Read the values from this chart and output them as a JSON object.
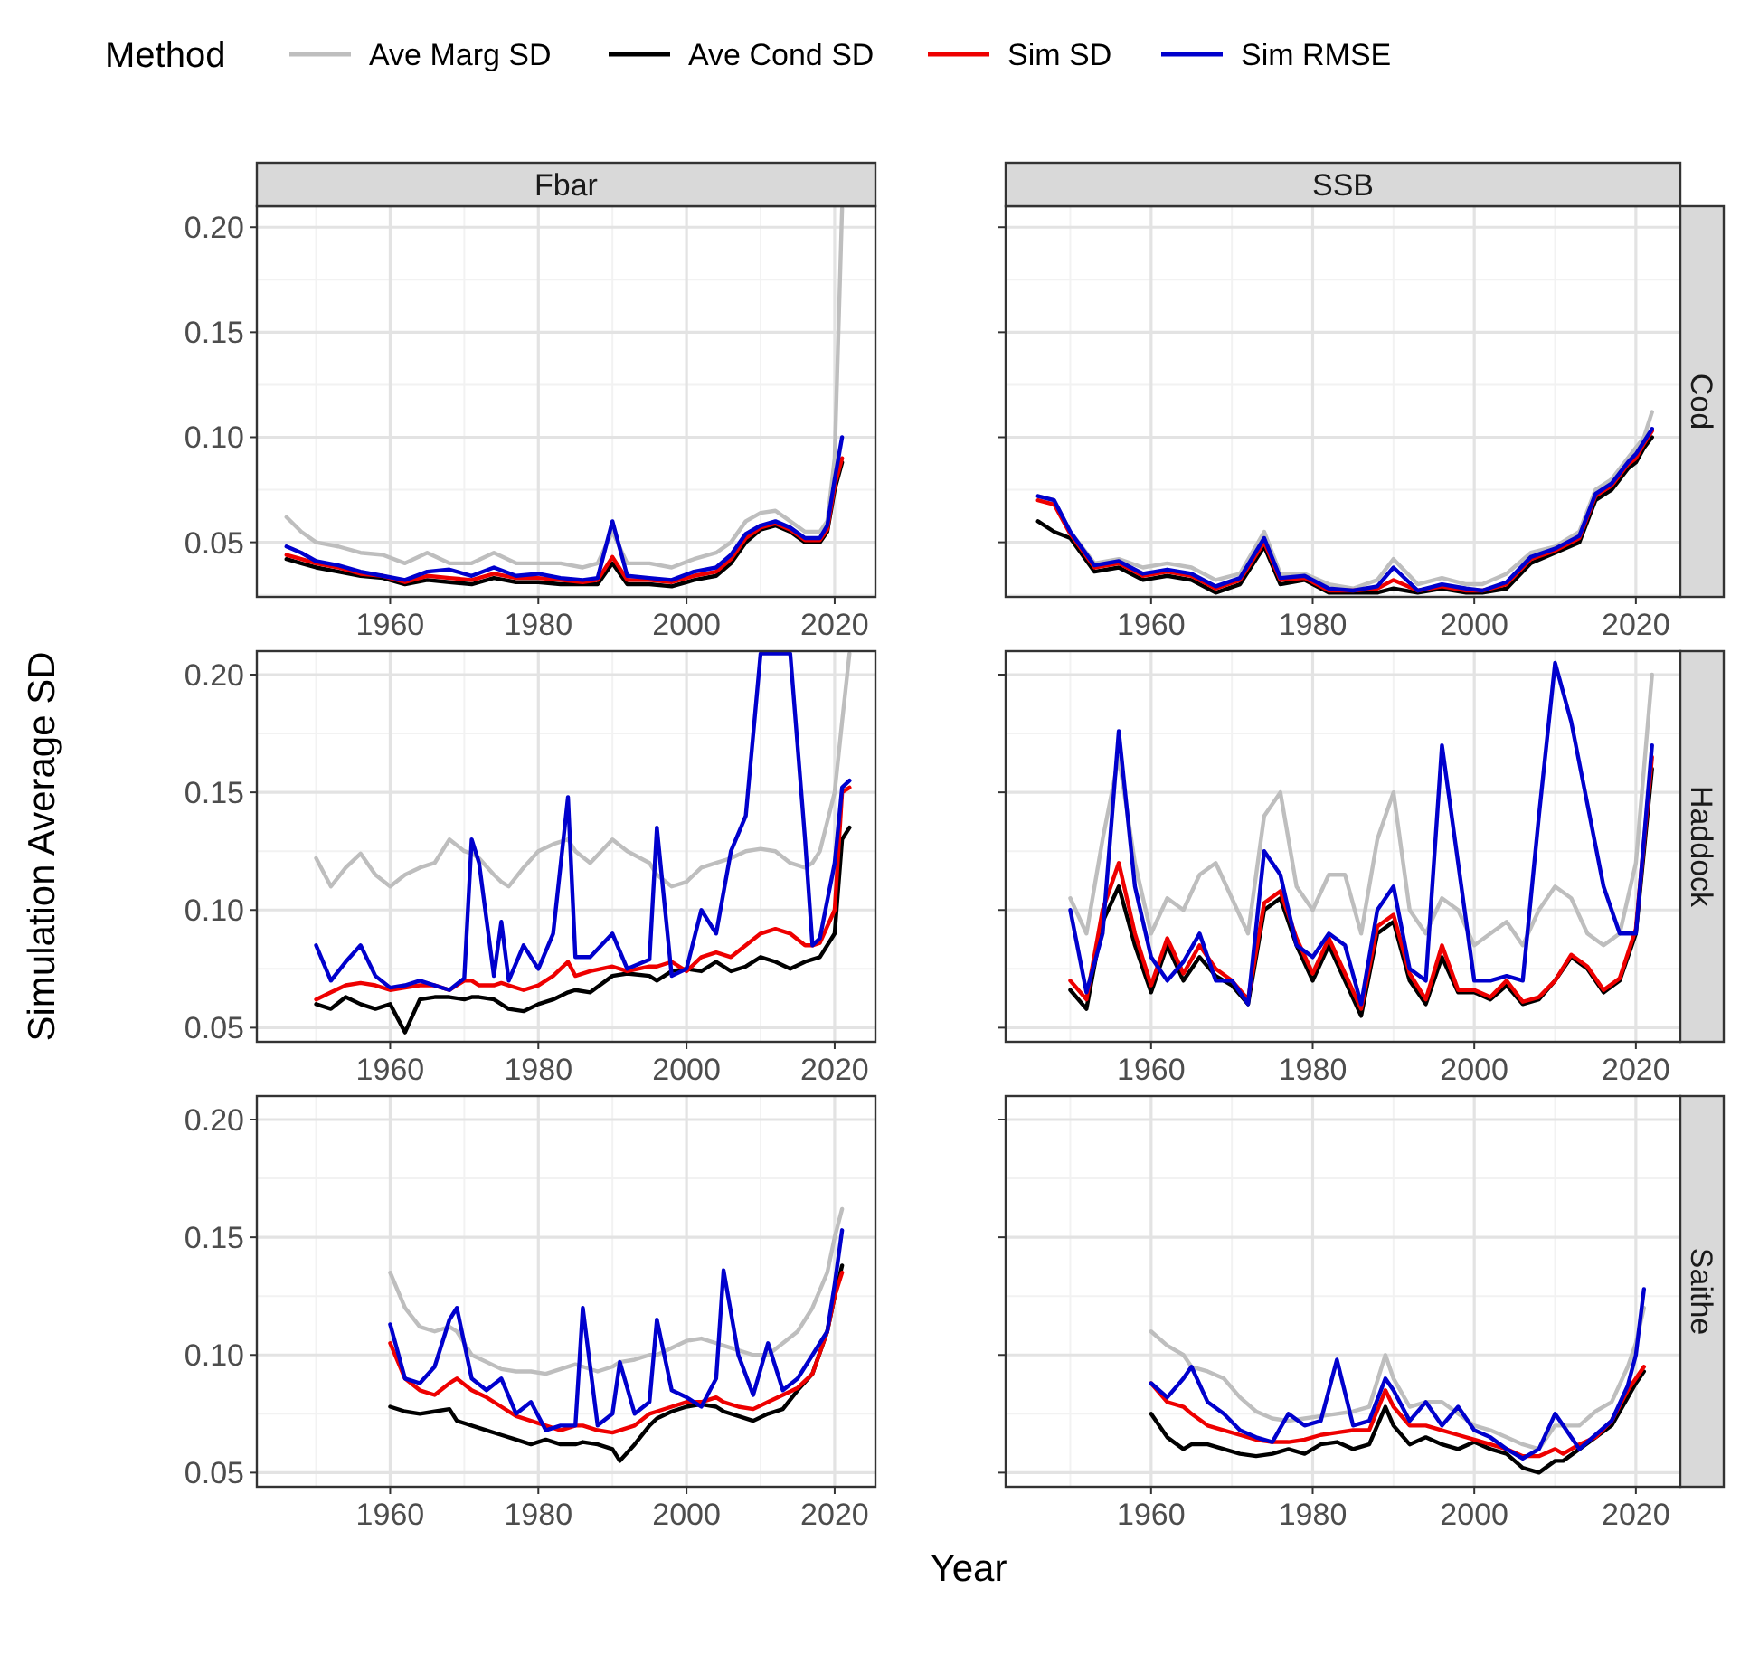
{
  "chart_data": [
    {
      "type": "line",
      "title": "Fbar",
      "legend": "top",
      "legend_title": "Method",
      "grid": true,
      "xlim": [
        1942,
        2025.5
      ],
      "xticks": [
        1960,
        1980,
        2000,
        2020
      ],
      "ylim": [
        0.024,
        0.21
      ],
      "yticks": [
        {
          "value": 0.05,
          "label": "0.05"
        },
        {
          "value": 0.1,
          "label": "0.10"
        },
        {
          "value": 0.15,
          "label": "0.15"
        },
        {
          "value": 0.2,
          "label": "0.20"
        }
      ],
      "x": [
        1946,
        1948,
        1950,
        1953,
        1956,
        1959,
        1962,
        1965,
        1968,
        1971,
        1974,
        1977,
        1980,
        1983,
        1986,
        1988,
        1990,
        1992,
        1995,
        1998,
        2001,
        2004,
        2006,
        2008,
        2010,
        2012,
        2014,
        2016,
        2018,
        2019,
        2020,
        2021
      ],
      "series": [
        {
          "name": "Ave Marg SD",
          "color": "#bebebe",
          "values": [
            0.062,
            0.055,
            0.05,
            0.048,
            0.045,
            0.044,
            0.04,
            0.045,
            0.04,
            0.04,
            0.045,
            0.04,
            0.04,
            0.04,
            0.038,
            0.04,
            0.055,
            0.04,
            0.04,
            0.038,
            0.042,
            0.045,
            0.05,
            0.06,
            0.064,
            0.065,
            0.06,
            0.055,
            0.055,
            0.06,
            0.09,
            0.209
          ]
        },
        {
          "name": "Ave Cond SD",
          "color": "#000000",
          "values": [
            0.042,
            0.04,
            0.038,
            0.036,
            0.034,
            0.033,
            0.03,
            0.032,
            0.031,
            0.03,
            0.033,
            0.031,
            0.031,
            0.03,
            0.03,
            0.03,
            0.04,
            0.03,
            0.03,
            0.029,
            0.032,
            0.034,
            0.04,
            0.05,
            0.056,
            0.058,
            0.055,
            0.05,
            0.05,
            0.055,
            0.075,
            0.088
          ]
        },
        {
          "name": "Sim SD",
          "color": "#ee0000",
          "values": [
            0.044,
            0.042,
            0.04,
            0.038,
            0.035,
            0.034,
            0.031,
            0.034,
            0.033,
            0.032,
            0.035,
            0.033,
            0.033,
            0.032,
            0.031,
            0.032,
            0.043,
            0.032,
            0.032,
            0.031,
            0.034,
            0.036,
            0.042,
            0.052,
            0.057,
            0.059,
            0.056,
            0.051,
            0.051,
            0.056,
            0.077,
            0.09
          ]
        },
        {
          "name": "Sim RMSE",
          "color": "#0000cd",
          "values": [
            0.048,
            0.045,
            0.041,
            0.039,
            0.036,
            0.034,
            0.032,
            0.036,
            0.037,
            0.034,
            0.038,
            0.034,
            0.035,
            0.033,
            0.032,
            0.033,
            0.06,
            0.034,
            0.033,
            0.032,
            0.036,
            0.038,
            0.044,
            0.054,
            0.058,
            0.06,
            0.057,
            0.052,
            0.052,
            0.058,
            0.08,
            0.1
          ]
        }
      ]
    },
    {
      "type": "line",
      "title": "SSB",
      "y2label": "Cod",
      "tick_labels": "x",
      "grid": true,
      "xlim": [
        1942,
        2025.5
      ],
      "xticks": [
        1960,
        1980,
        2000,
        2020
      ],
      "ylim": [
        0.024,
        0.21
      ],
      "yticks": [
        {
          "value": 0.05,
          "label": null
        },
        {
          "value": 0.1,
          "label": null
        },
        {
          "value": 0.15,
          "label": null
        },
        {
          "value": 0.2,
          "label": null
        }
      ],
      "x": [
        1946,
        1948,
        1950,
        1953,
        1956,
        1959,
        1962,
        1965,
        1968,
        1971,
        1974,
        1976,
        1979,
        1982,
        1985,
        1988,
        1990,
        1993,
        1996,
        1999,
        2001,
        2004,
        2007,
        2010,
        2013,
        2015,
        2017,
        2019,
        2020,
        2021,
        2022
      ],
      "series": [
        {
          "color": "#bebebe",
          "values": [
            0.072,
            0.07,
            0.055,
            0.04,
            0.042,
            0.038,
            0.04,
            0.038,
            0.032,
            0.035,
            0.055,
            0.035,
            0.035,
            0.03,
            0.028,
            0.032,
            0.042,
            0.03,
            0.033,
            0.03,
            0.03,
            0.035,
            0.045,
            0.048,
            0.055,
            0.075,
            0.08,
            0.09,
            0.095,
            0.1,
            0.112
          ]
        },
        {
          "color": "#000000",
          "values": [
            0.06,
            0.055,
            0.052,
            0.036,
            0.038,
            0.032,
            0.034,
            0.032,
            0.026,
            0.03,
            0.048,
            0.03,
            0.032,
            0.026,
            0.026,
            0.026,
            0.028,
            0.026,
            0.028,
            0.026,
            0.026,
            0.028,
            0.04,
            0.045,
            0.05,
            0.07,
            0.075,
            0.085,
            0.088,
            0.095,
            0.1
          ]
        },
        {
          "color": "#ee0000",
          "values": [
            0.07,
            0.068,
            0.054,
            0.038,
            0.04,
            0.034,
            0.036,
            0.034,
            0.028,
            0.032,
            0.05,
            0.032,
            0.033,
            0.027,
            0.027,
            0.028,
            0.032,
            0.027,
            0.029,
            0.027,
            0.027,
            0.03,
            0.042,
            0.046,
            0.052,
            0.072,
            0.077,
            0.087,
            0.09,
            0.097,
            0.103
          ]
        },
        {
          "color": "#0000cd",
          "values": [
            0.072,
            0.07,
            0.055,
            0.039,
            0.041,
            0.035,
            0.037,
            0.035,
            0.029,
            0.033,
            0.052,
            0.033,
            0.034,
            0.028,
            0.027,
            0.029,
            0.038,
            0.027,
            0.03,
            0.028,
            0.027,
            0.031,
            0.043,
            0.047,
            0.053,
            0.073,
            0.078,
            0.088,
            0.092,
            0.098,
            0.104
          ]
        }
      ]
    },
    {
      "type": "line",
      "ylabel": "Simulation Average SD",
      "grid": true,
      "xlim": [
        1942,
        2025.5
      ],
      "xticks": [
        1960,
        1980,
        2000,
        2020
      ],
      "ylim": [
        0.044,
        0.21
      ],
      "yticks": [
        {
          "value": 0.05,
          "label": "0.05"
        },
        {
          "value": 0.1,
          "label": "0.10"
        },
        {
          "value": 0.15,
          "label": "0.15"
        },
        {
          "value": 0.2,
          "label": "0.20"
        }
      ],
      "x": [
        1950,
        1952,
        1954,
        1956,
        1958,
        1960,
        1962,
        1964,
        1966,
        1968,
        1970,
        1971,
        1972,
        1974,
        1975,
        1976,
        1978,
        1980,
        1982,
        1984,
        1985,
        1987,
        1990,
        1992,
        1995,
        1996,
        1998,
        2000,
        2002,
        2004,
        2006,
        2008,
        2010,
        2012,
        2014,
        2016,
        2017,
        2018,
        2020,
        2021,
        2022
      ],
      "series": [
        {
          "color": "#bebebe",
          "values": [
            0.122,
            0.11,
            0.118,
            0.124,
            0.115,
            0.11,
            0.115,
            0.118,
            0.12,
            0.13,
            0.125,
            0.124,
            0.122,
            0.115,
            0.112,
            0.11,
            0.118,
            0.125,
            0.128,
            0.13,
            0.125,
            0.12,
            0.13,
            0.125,
            0.12,
            0.115,
            0.11,
            0.112,
            0.118,
            0.12,
            0.122,
            0.125,
            0.126,
            0.125,
            0.12,
            0.118,
            0.12,
            0.125,
            0.15,
            0.18,
            0.209
          ]
        },
        {
          "color": "#000000",
          "values": [
            0.06,
            0.058,
            0.063,
            0.06,
            0.058,
            0.06,
            0.048,
            0.062,
            0.063,
            0.063,
            0.062,
            0.063,
            0.063,
            0.062,
            0.06,
            0.058,
            0.057,
            0.06,
            0.062,
            0.065,
            0.066,
            0.065,
            0.072,
            0.073,
            0.072,
            0.07,
            0.074,
            0.075,
            0.074,
            0.078,
            0.074,
            0.076,
            0.08,
            0.078,
            0.075,
            0.078,
            0.079,
            0.08,
            0.09,
            0.13,
            0.135
          ]
        },
        {
          "color": "#ee0000",
          "values": [
            0.062,
            0.065,
            0.068,
            0.069,
            0.068,
            0.066,
            0.067,
            0.068,
            0.068,
            0.066,
            0.07,
            0.07,
            0.068,
            0.068,
            0.069,
            0.068,
            0.066,
            0.068,
            0.072,
            0.078,
            0.072,
            0.074,
            0.076,
            0.074,
            0.076,
            0.076,
            0.078,
            0.074,
            0.08,
            0.082,
            0.08,
            0.085,
            0.09,
            0.092,
            0.09,
            0.085,
            0.085,
            0.086,
            0.1,
            0.15,
            0.152
          ]
        },
        {
          "color": "#0000cd",
          "values": [
            0.085,
            0.07,
            0.078,
            0.085,
            0.072,
            0.067,
            0.068,
            0.07,
            0.068,
            0.066,
            0.071,
            0.13,
            0.12,
            0.072,
            0.095,
            0.07,
            0.085,
            0.075,
            0.09,
            0.148,
            0.08,
            0.08,
            0.09,
            0.075,
            0.079,
            0.135,
            0.072,
            0.075,
            0.1,
            0.09,
            0.125,
            0.14,
            0.209,
            0.209,
            0.209,
            0.13,
            0.085,
            0.088,
            0.12,
            0.152,
            0.155
          ]
        }
      ]
    },
    {
      "type": "line",
      "y2label": "Haddock",
      "tick_labels": "x",
      "grid": true,
      "xlim": [
        1942,
        2025.5
      ],
      "xticks": [
        1960,
        1980,
        2000,
        2020
      ],
      "ylim": [
        0.044,
        0.21
      ],
      "yticks": [
        {
          "value": 0.05,
          "label": null
        },
        {
          "value": 0.1,
          "label": null
        },
        {
          "value": 0.15,
          "label": null
        },
        {
          "value": 0.2,
          "label": null
        }
      ],
      "x": [
        1950,
        1952,
        1954,
        1956,
        1958,
        1960,
        1962,
        1964,
        1966,
        1968,
        1970,
        1972,
        1974,
        1976,
        1978,
        1980,
        1982,
        1984,
        1986,
        1988,
        1990,
        1992,
        1994,
        1996,
        1998,
        2000,
        2002,
        2004,
        2006,
        2008,
        2010,
        2012,
        2014,
        2016,
        2018,
        2020,
        2022
      ],
      "series": [
        {
          "color": "#bebebe",
          "values": [
            0.105,
            0.09,
            0.13,
            0.165,
            0.12,
            0.09,
            0.105,
            0.1,
            0.115,
            0.12,
            0.105,
            0.09,
            0.14,
            0.15,
            0.11,
            0.1,
            0.115,
            0.115,
            0.09,
            0.13,
            0.15,
            0.1,
            0.09,
            0.105,
            0.1,
            0.085,
            0.09,
            0.095,
            0.085,
            0.1,
            0.11,
            0.105,
            0.09,
            0.085,
            0.09,
            0.12,
            0.2
          ]
        },
        {
          "color": "#000000",
          "values": [
            0.066,
            0.058,
            0.095,
            0.11,
            0.085,
            0.065,
            0.085,
            0.07,
            0.08,
            0.072,
            0.068,
            0.06,
            0.1,
            0.105,
            0.085,
            0.07,
            0.085,
            0.07,
            0.055,
            0.09,
            0.095,
            0.07,
            0.06,
            0.08,
            0.065,
            0.065,
            0.062,
            0.068,
            0.06,
            0.062,
            0.07,
            0.08,
            0.075,
            0.065,
            0.07,
            0.09,
            0.16
          ]
        },
        {
          "color": "#ee0000",
          "values": [
            0.07,
            0.062,
            0.1,
            0.12,
            0.09,
            0.068,
            0.088,
            0.073,
            0.085,
            0.075,
            0.07,
            0.062,
            0.103,
            0.108,
            0.088,
            0.073,
            0.088,
            0.073,
            0.058,
            0.093,
            0.098,
            0.073,
            0.062,
            0.085,
            0.066,
            0.066,
            0.063,
            0.07,
            0.061,
            0.063,
            0.07,
            0.081,
            0.076,
            0.066,
            0.071,
            0.092,
            0.165
          ]
        },
        {
          "color": "#0000cd",
          "values": [
            0.1,
            0.065,
            0.09,
            0.176,
            0.11,
            0.08,
            0.07,
            0.078,
            0.09,
            0.07,
            0.07,
            0.06,
            0.125,
            0.115,
            0.085,
            0.08,
            0.09,
            0.085,
            0.06,
            0.1,
            0.11,
            0.075,
            0.07,
            0.17,
            0.12,
            0.07,
            0.07,
            0.072,
            0.07,
            0.14,
            0.205,
            0.18,
            0.145,
            0.11,
            0.09,
            0.09,
            0.17
          ]
        }
      ]
    },
    {
      "type": "line",
      "xlabel": "Year",
      "grid": true,
      "xlim": [
        1942,
        2025.5
      ],
      "xticks": [
        1960,
        1980,
        2000,
        2020
      ],
      "ylim": [
        0.044,
        0.21
      ],
      "yticks": [
        {
          "value": 0.05,
          "label": "0.05"
        },
        {
          "value": 0.1,
          "label": "0.10"
        },
        {
          "value": 0.15,
          "label": "0.15"
        },
        {
          "value": 0.2,
          "label": "0.20"
        }
      ],
      "x": [
        1960,
        1962,
        1964,
        1966,
        1968,
        1969,
        1971,
        1973,
        1975,
        1977,
        1979,
        1981,
        1983,
        1985,
        1986,
        1988,
        1990,
        1991,
        1993,
        1995,
        1996,
        1998,
        2000,
        2002,
        2004,
        2005,
        2007,
        2009,
        2011,
        2013,
        2015,
        2017,
        2019,
        2020,
        2021
      ],
      "series": [
        {
          "color": "#bebebe",
          "values": [
            0.135,
            0.12,
            0.112,
            0.11,
            0.112,
            0.11,
            0.1,
            0.097,
            0.094,
            0.093,
            0.093,
            0.092,
            0.094,
            0.096,
            0.095,
            0.093,
            0.095,
            0.097,
            0.098,
            0.1,
            0.1,
            0.103,
            0.106,
            0.107,
            0.105,
            0.104,
            0.102,
            0.1,
            0.1,
            0.105,
            0.11,
            0.12,
            0.135,
            0.15,
            0.162
          ]
        },
        {
          "color": "#000000",
          "values": [
            0.078,
            0.076,
            0.075,
            0.076,
            0.077,
            0.072,
            0.07,
            0.068,
            0.066,
            0.064,
            0.062,
            0.064,
            0.062,
            0.062,
            0.063,
            0.062,
            0.06,
            0.055,
            0.062,
            0.07,
            0.073,
            0.076,
            0.078,
            0.079,
            0.078,
            0.076,
            0.074,
            0.072,
            0.075,
            0.077,
            0.085,
            0.092,
            0.11,
            0.125,
            0.138
          ]
        },
        {
          "color": "#ee0000",
          "values": [
            0.105,
            0.09,
            0.085,
            0.083,
            0.088,
            0.09,
            0.085,
            0.082,
            0.078,
            0.074,
            0.072,
            0.07,
            0.068,
            0.07,
            0.07,
            0.068,
            0.067,
            0.068,
            0.07,
            0.075,
            0.076,
            0.078,
            0.08,
            0.08,
            0.082,
            0.08,
            0.078,
            0.077,
            0.08,
            0.083,
            0.086,
            0.092,
            0.11,
            0.125,
            0.135
          ]
        },
        {
          "color": "#0000cd",
          "values": [
            0.113,
            0.09,
            0.088,
            0.095,
            0.115,
            0.12,
            0.09,
            0.085,
            0.09,
            0.075,
            0.08,
            0.068,
            0.07,
            0.07,
            0.12,
            0.07,
            0.075,
            0.097,
            0.075,
            0.08,
            0.115,
            0.085,
            0.082,
            0.078,
            0.09,
            0.136,
            0.1,
            0.083,
            0.105,
            0.085,
            0.09,
            0.1,
            0.11,
            0.13,
            0.153
          ]
        }
      ]
    },
    {
      "type": "line",
      "y2label": "Saithe",
      "tick_labels": "x",
      "grid": true,
      "xlim": [
        1942,
        2025.5
      ],
      "xticks": [
        1960,
        1980,
        2000,
        2020
      ],
      "ylim": [
        0.044,
        0.21
      ],
      "yticks": [
        {
          "value": 0.05,
          "label": null
        },
        {
          "value": 0.1,
          "label": null
        },
        {
          "value": 0.15,
          "label": null
        },
        {
          "value": 0.2,
          "label": null
        }
      ],
      "x": [
        1960,
        1962,
        1964,
        1965,
        1967,
        1969,
        1971,
        1973,
        1975,
        1977,
        1979,
        1981,
        1983,
        1985,
        1987,
        1989,
        1990,
        1992,
        1994,
        1996,
        1998,
        2000,
        2002,
        2004,
        2006,
        2008,
        2010,
        2011,
        2013,
        2015,
        2017,
        2019,
        2020,
        2021
      ],
      "series": [
        {
          "color": "#bebebe",
          "values": [
            0.11,
            0.104,
            0.1,
            0.095,
            0.093,
            0.09,
            0.082,
            0.076,
            0.073,
            0.072,
            0.073,
            0.074,
            0.075,
            0.076,
            0.078,
            0.1,
            0.09,
            0.078,
            0.08,
            0.08,
            0.075,
            0.07,
            0.068,
            0.065,
            0.062,
            0.06,
            0.07,
            0.07,
            0.07,
            0.076,
            0.08,
            0.095,
            0.105,
            0.12
          ]
        },
        {
          "color": "#000000",
          "values": [
            0.075,
            0.065,
            0.06,
            0.062,
            0.062,
            0.06,
            0.058,
            0.057,
            0.058,
            0.06,
            0.058,
            0.062,
            0.063,
            0.06,
            0.062,
            0.078,
            0.07,
            0.062,
            0.065,
            0.062,
            0.06,
            0.063,
            0.06,
            0.058,
            0.052,
            0.05,
            0.055,
            0.055,
            0.06,
            0.065,
            0.07,
            0.082,
            0.088,
            0.093
          ]
        },
        {
          "color": "#ee0000",
          "values": [
            0.088,
            0.08,
            0.078,
            0.075,
            0.07,
            0.068,
            0.066,
            0.064,
            0.063,
            0.063,
            0.064,
            0.066,
            0.067,
            0.068,
            0.068,
            0.085,
            0.078,
            0.07,
            0.07,
            0.068,
            0.066,
            0.064,
            0.062,
            0.06,
            0.057,
            0.057,
            0.06,
            0.058,
            0.062,
            0.065,
            0.072,
            0.085,
            0.09,
            0.095
          ]
        },
        {
          "color": "#0000cd",
          "values": [
            0.088,
            0.082,
            0.09,
            0.095,
            0.08,
            0.075,
            0.068,
            0.065,
            0.063,
            0.075,
            0.07,
            0.072,
            0.098,
            0.07,
            0.072,
            0.09,
            0.085,
            0.072,
            0.08,
            0.07,
            0.078,
            0.068,
            0.065,
            0.06,
            0.056,
            0.06,
            0.075,
            0.07,
            0.06,
            0.066,
            0.072,
            0.087,
            0.1,
            0.128
          ]
        }
      ]
    }
  ]
}
